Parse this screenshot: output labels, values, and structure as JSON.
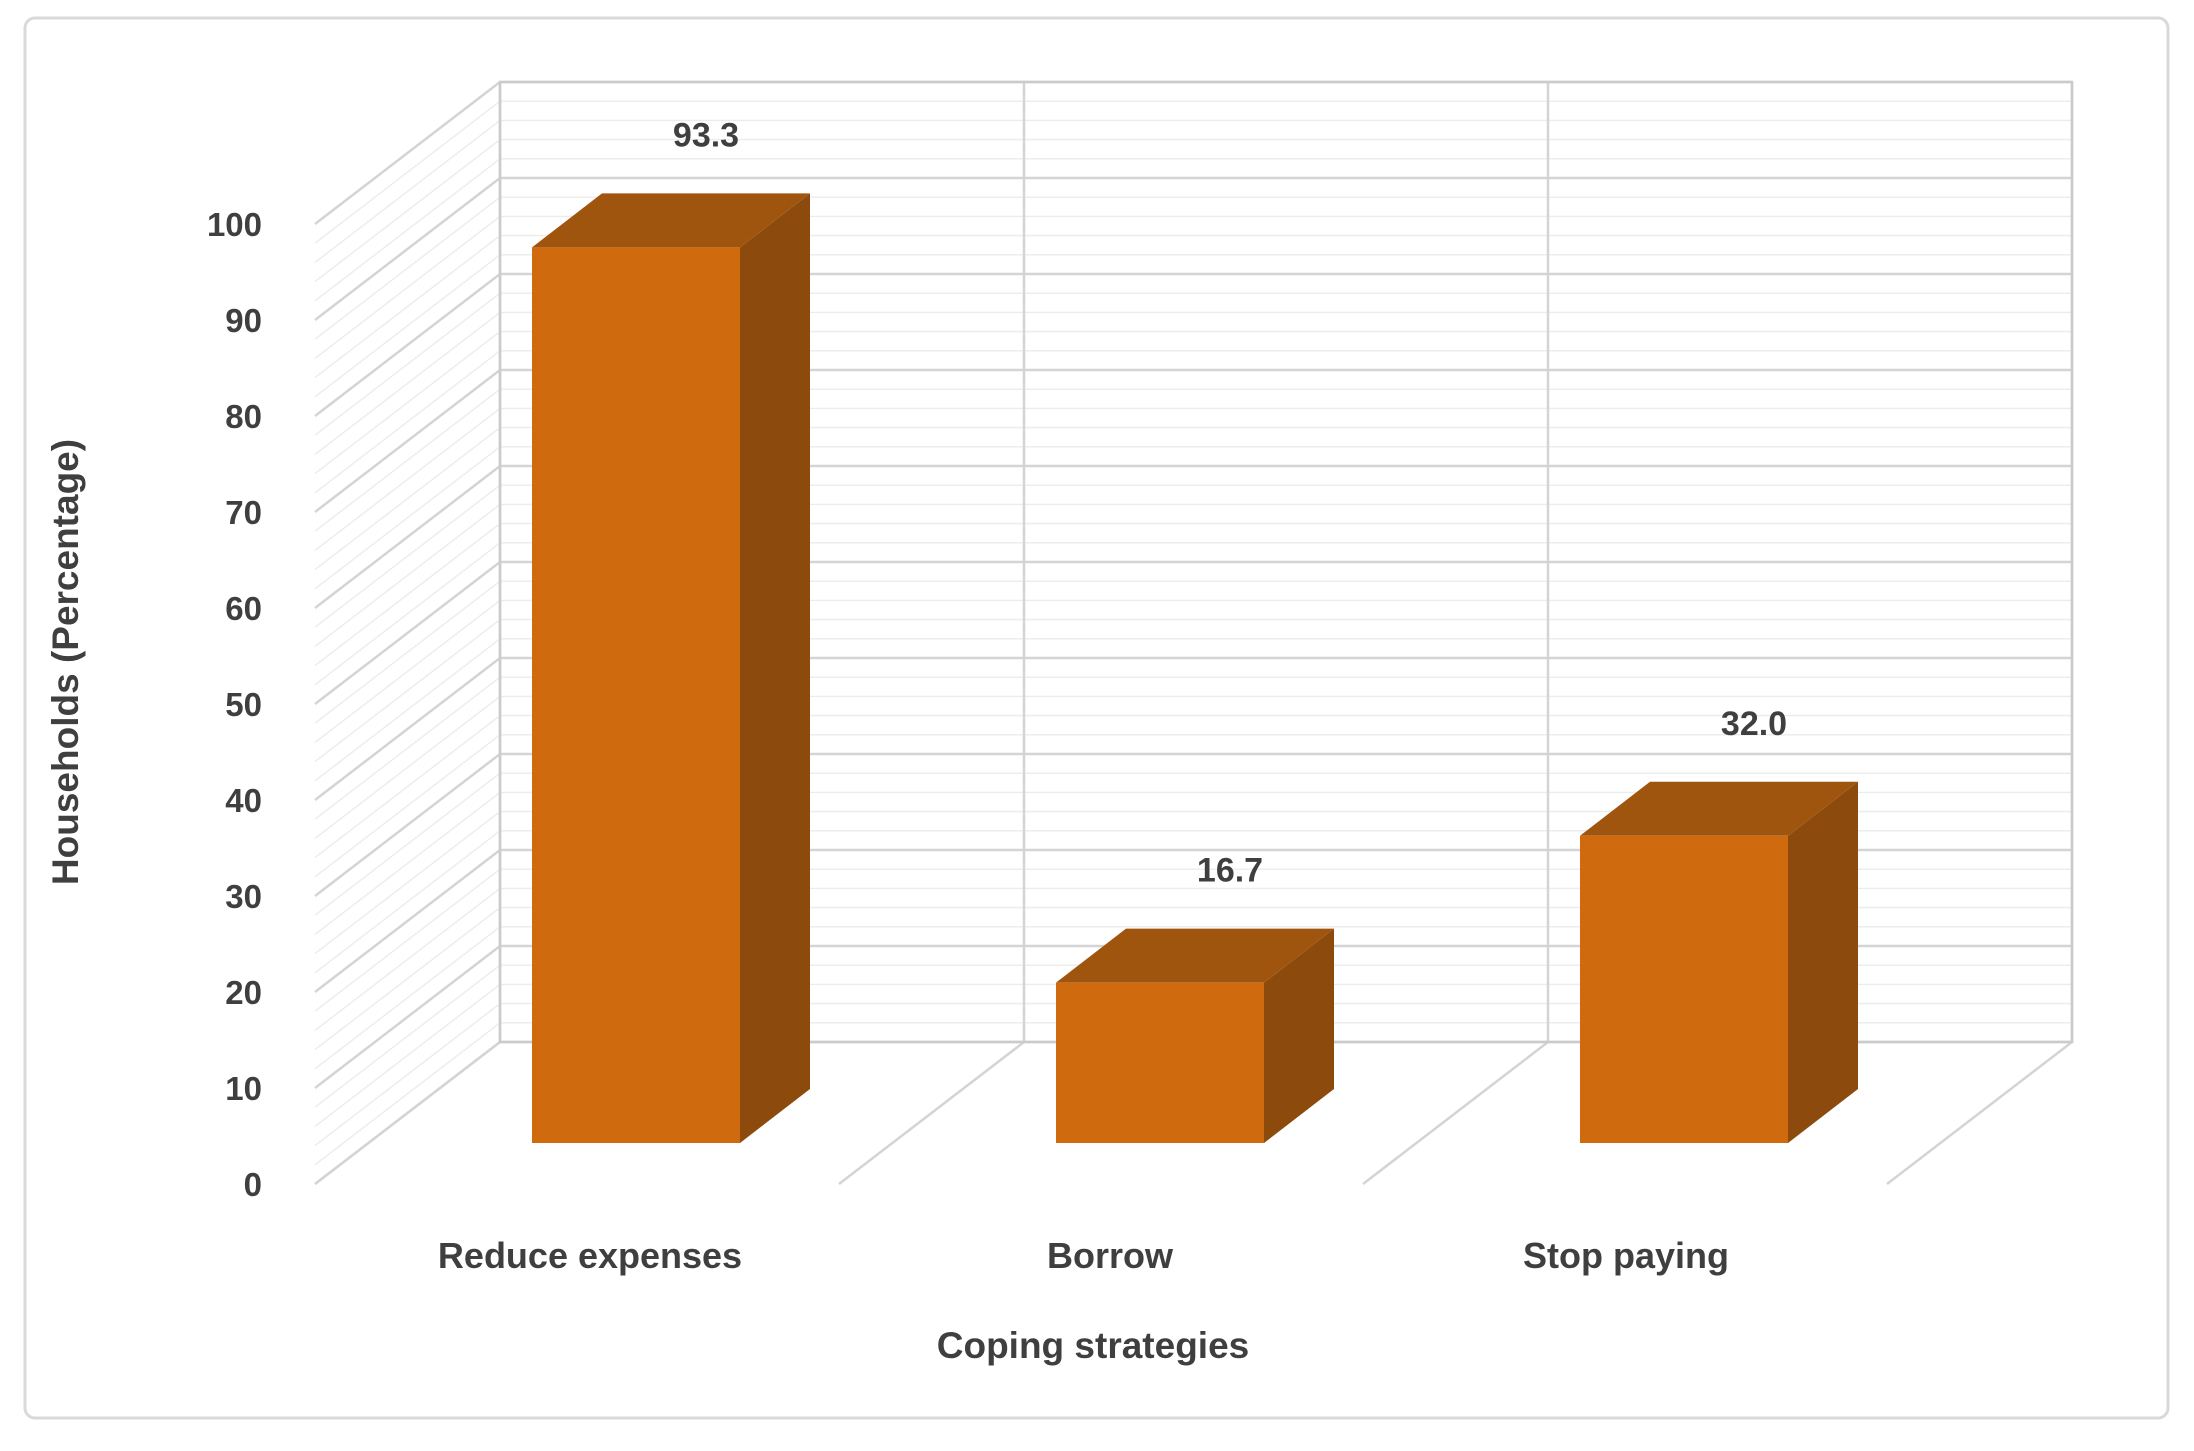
{
  "chart_data": {
    "type": "bar",
    "variant": "3d-column",
    "title": "",
    "categories": [
      "Reduce expenses",
      "Borrow",
      "Stop paying"
    ],
    "values": [
      93.3,
      16.7,
      32.0
    ],
    "data_labels": [
      "93.3",
      "16.7",
      "32.0"
    ],
    "xlabel": "Coping strategies",
    "ylabel": "Households (Percentage)",
    "ylim": [
      0,
      100
    ],
    "y_ticks": [
      "0",
      "10",
      "20",
      "30",
      "40",
      "50",
      "60",
      "70",
      "80",
      "90",
      "100"
    ],
    "y_minor_step": 2,
    "grid": "major+minor horizontal, vertical category dividers",
    "legend": "none",
    "colors": {
      "bar_front": "#D06A0E",
      "bar_top": "#A0550F",
      "bar_side": "#8C4B0C",
      "grid_major": "#D4D4D4",
      "grid_minor": "#ECECEC",
      "wall_edge": "#CBCBCB",
      "text": "#3F3F3F",
      "frame_border": "#D9D9D9",
      "background": "#FFFFFF"
    }
  }
}
